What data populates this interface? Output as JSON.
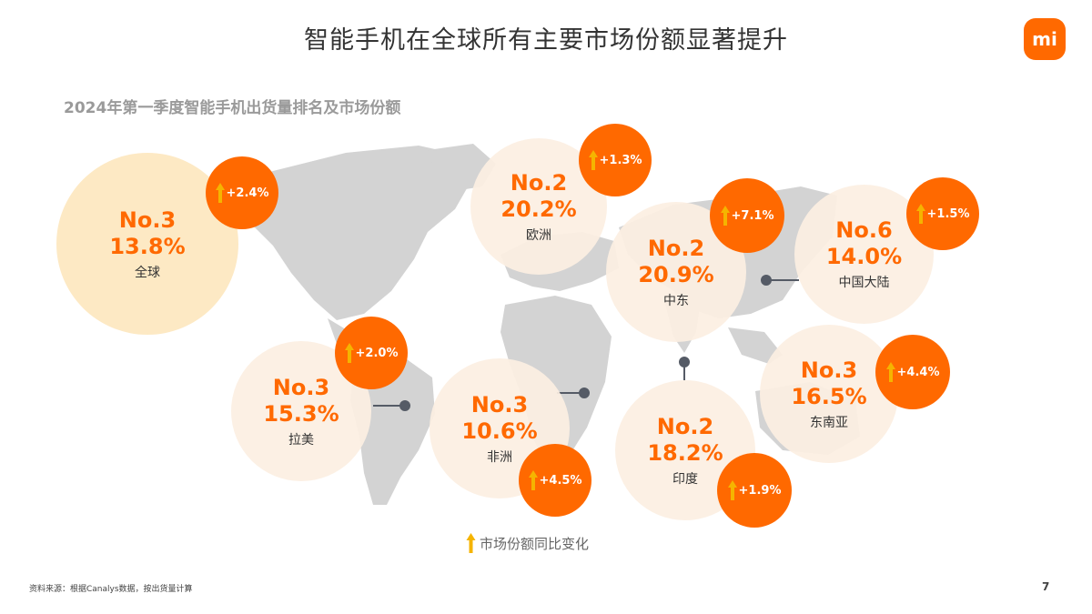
{
  "header": {
    "title": "智能手机在全球所有主要市场份额显著提升",
    "logo_text": "mi",
    "subtitle": "2024年第一季度智能手机出货量排名及市场份额"
  },
  "colors": {
    "accent": "#ff6900",
    "bubble_light": "#fcefe2",
    "bubble_global": "#fde9c4",
    "map_gray": "#d3d3d3",
    "arrow": "#f5b400"
  },
  "markets": [
    {
      "rank": "No.3",
      "share": "13.8%",
      "region": "全球",
      "change": "+2.4%"
    },
    {
      "rank": "No.2",
      "share": "20.2%",
      "region": "欧洲",
      "change": "+1.3%"
    },
    {
      "rank": "No.2",
      "share": "20.9%",
      "region": "中东",
      "change": "+7.1%"
    },
    {
      "rank": "No.6",
      "share": "14.0%",
      "region": "中国大陆",
      "change": "+1.5%"
    },
    {
      "rank": "No.3",
      "share": "15.3%",
      "region": "拉美",
      "change": "+2.0%"
    },
    {
      "rank": "No.3",
      "share": "10.6%",
      "region": "非洲",
      "change": "+4.5%"
    },
    {
      "rank": "No.2",
      "share": "18.2%",
      "region": "印度",
      "change": "+1.9%"
    },
    {
      "rank": "No.3",
      "share": "16.5%",
      "region": "东南亚",
      "change": "+4.4%"
    }
  ],
  "legend": {
    "label": "市场份额同比变化",
    "icon": "up-arrow-icon"
  },
  "footer": {
    "source": "资料来源：根据Canalys数据，按出货量计算",
    "page_number": "7"
  }
}
